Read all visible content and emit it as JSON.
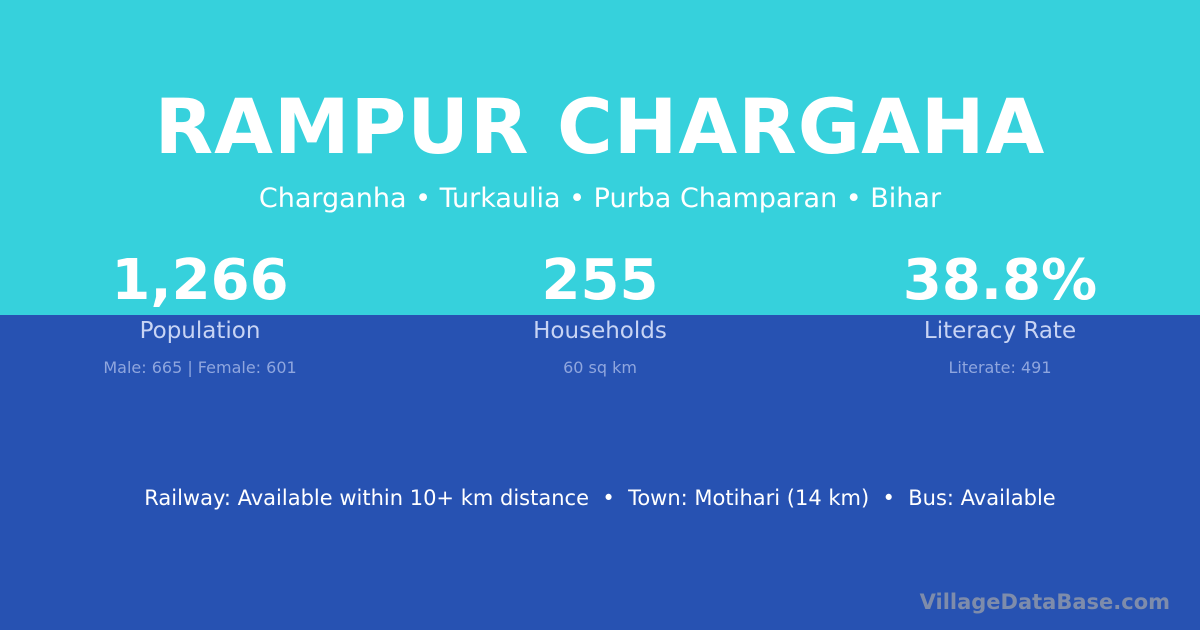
{
  "title": "RAMPUR CHARGAHA",
  "subtitle": "Charganha • Turkaulia • Purba Champaran • Bihar",
  "stats": [
    {
      "value": "1,266",
      "label": "Population",
      "detail": "Male: 665 | Female: 601"
    },
    {
      "value": "255",
      "label": "Households",
      "detail": "60 sq km"
    },
    {
      "value": "38.8%",
      "label": "Literacy Rate",
      "detail": "Literate: 491"
    }
  ],
  "info": "Railway: Available within 10+ km distance  •  Town: Motihari (14 km)  •  Bus: Available",
  "brand": "VillageDataBase.com",
  "colors": {
    "top": "#36d1dc",
    "bottom": "#2752b2"
  }
}
